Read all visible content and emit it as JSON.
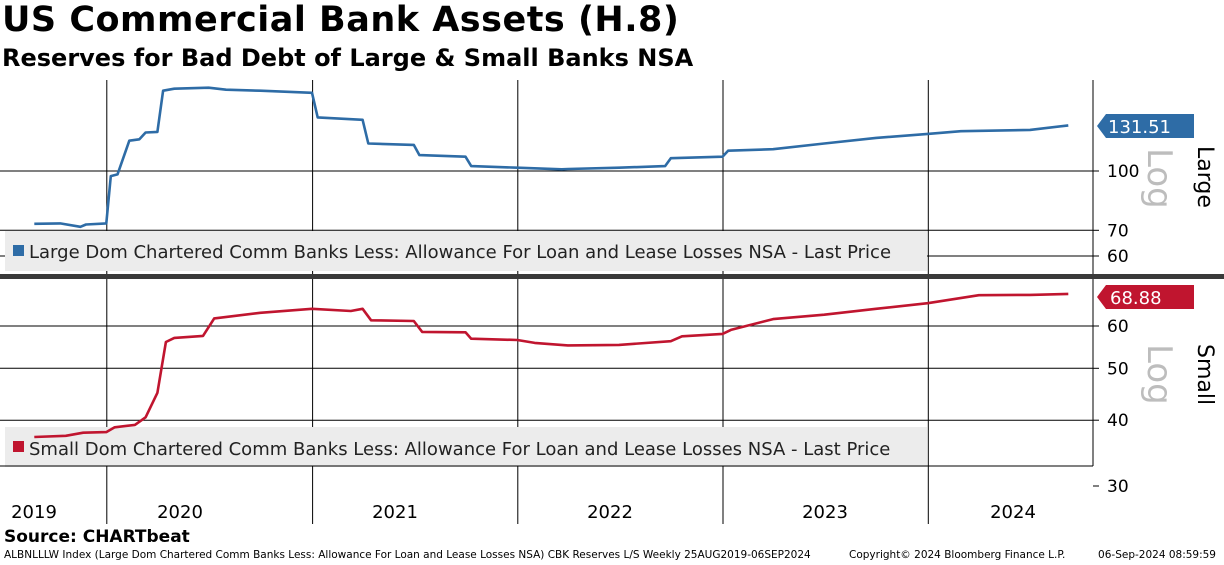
{
  "title": "US Commercial Bank Assets (H.8)",
  "subtitle": "Reserves for Bad Debt of Large & Small Banks NSA",
  "source": "Source: CHARTbeat",
  "footer": {
    "left": "ALBNLLLW Index (Large Dom Chartered Comm Banks Less: Allowance For Loan and Lease Losses NSA) CBK Reserves L/S  Weekly 25AUG2019-06SEP2024",
    "middle": "Copyright© 2024 Bloomberg Finance L.P.",
    "right": "06-Sep-2024 08:59:59"
  },
  "colors": {
    "large": "#2e6ca6",
    "small": "#c0152f"
  },
  "chart_data": [
    {
      "type": "line",
      "panel": "Large",
      "scale": "log",
      "axis_side": "right",
      "axis_watermark": "Log",
      "ylim": [
        55,
        185
      ],
      "yticks": [
        100,
        70,
        60
      ],
      "last_value_label": "131.51",
      "series": [
        {
          "name": "Large Dom Chartered Comm Banks Less: Allowance For Loan and Lease Losses NSA - Last Price",
          "color": "#2e6ca6",
          "points": [
            [
              "2019-08-25",
              72.8
            ],
            [
              "2019-10-10",
              73.0
            ],
            [
              "2019-11-15",
              71.5
            ],
            [
              "2019-11-25",
              72.5
            ],
            [
              "2019-12-31",
              73.0
            ],
            [
              "2020-01-08",
              97
            ],
            [
              "2020-01-20",
              98
            ],
            [
              "2020-02-10",
              120
            ],
            [
              "2020-02-28",
              121
            ],
            [
              "2020-03-10",
              126
            ],
            [
              "2020-03-31",
              126.5
            ],
            [
              "2020-04-10",
              162
            ],
            [
              "2020-04-30",
              164
            ],
            [
              "2020-06-30",
              165
            ],
            [
              "2020-07-31",
              163
            ],
            [
              "2020-09-30",
              162
            ],
            [
              "2020-12-31",
              160
            ],
            [
              "2021-01-10",
              138
            ],
            [
              "2021-03-31",
              136
            ],
            [
              "2021-04-10",
              118
            ],
            [
              "2021-06-30",
              117
            ],
            [
              "2021-07-10",
              110
            ],
            [
              "2021-09-30",
              109
            ],
            [
              "2021-10-10",
              103
            ],
            [
              "2021-12-31",
              102
            ],
            [
              "2022-03-20",
              101
            ],
            [
              "2022-03-31",
              101.2
            ],
            [
              "2022-06-30",
              102
            ],
            [
              "2022-09-20",
              103
            ],
            [
              "2022-09-30",
              108
            ],
            [
              "2022-12-31",
              109
            ],
            [
              "2023-01-10",
              113
            ],
            [
              "2023-03-31",
              114
            ],
            [
              "2023-06-30",
              118
            ],
            [
              "2023-09-30",
              122
            ],
            [
              "2023-12-31",
              125
            ],
            [
              "2024-02-28",
              127
            ],
            [
              "2024-06-30",
              128
            ],
            [
              "2024-09-06",
              131.51
            ]
          ]
        }
      ]
    },
    {
      "type": "line",
      "panel": "Small",
      "scale": "log",
      "axis_side": "right",
      "axis_watermark": "Log",
      "ylim": [
        29,
        73
      ],
      "yticks": [
        60,
        50,
        40,
        30
      ],
      "last_value_label": "68.88",
      "series": [
        {
          "name": "Small Dom Chartered Comm Banks Less: Allowance For Loan and Lease Losses NSA - Last Price",
          "color": "#c0152f",
          "points": [
            [
              "2019-08-25",
              37.2
            ],
            [
              "2019-10-20",
              37.4
            ],
            [
              "2019-11-20",
              37.9
            ],
            [
              "2019-12-31",
              38.0
            ],
            [
              "2020-01-15",
              38.8
            ],
            [
              "2020-02-20",
              39.2
            ],
            [
              "2020-03-10",
              40.5
            ],
            [
              "2020-03-31",
              45
            ],
            [
              "2020-04-15",
              56
            ],
            [
              "2020-04-30",
              57
            ],
            [
              "2020-06-20",
              57.5
            ],
            [
              "2020-07-10",
              62
            ],
            [
              "2020-09-30",
              63.5
            ],
            [
              "2020-12-31",
              64.6
            ],
            [
              "2021-03-10",
              64.0
            ],
            [
              "2021-03-31",
              64.6
            ],
            [
              "2021-04-15",
              61.5
            ],
            [
              "2021-06-30",
              61.3
            ],
            [
              "2021-07-15",
              58.5
            ],
            [
              "2021-09-30",
              58.4
            ],
            [
              "2021-10-10",
              56.8
            ],
            [
              "2021-12-31",
              56.5
            ],
            [
              "2022-01-31",
              55.8
            ],
            [
              "2022-03-31",
              55.2
            ],
            [
              "2022-06-30",
              55.3
            ],
            [
              "2022-09-30",
              56.2
            ],
            [
              "2022-10-20",
              57.4
            ],
            [
              "2022-12-31",
              58.0
            ],
            [
              "2023-01-15",
              59.0
            ],
            [
              "2023-03-31",
              61.8
            ],
            [
              "2023-06-30",
              63.0
            ],
            [
              "2023-09-30",
              64.6
            ],
            [
              "2023-12-31",
              66.2
            ],
            [
              "2024-03-31",
              68.5
            ],
            [
              "2024-06-30",
              68.6
            ],
            [
              "2024-09-06",
              68.88
            ]
          ]
        }
      ]
    }
  ],
  "x_axis": {
    "range": [
      "2019-08-25",
      "2024-09-06"
    ],
    "year_labels": [
      "2019",
      "2020",
      "2021",
      "2022",
      "2023",
      "2024"
    ]
  },
  "panel_labels": {
    "top": "Large",
    "bottom": "Small"
  }
}
